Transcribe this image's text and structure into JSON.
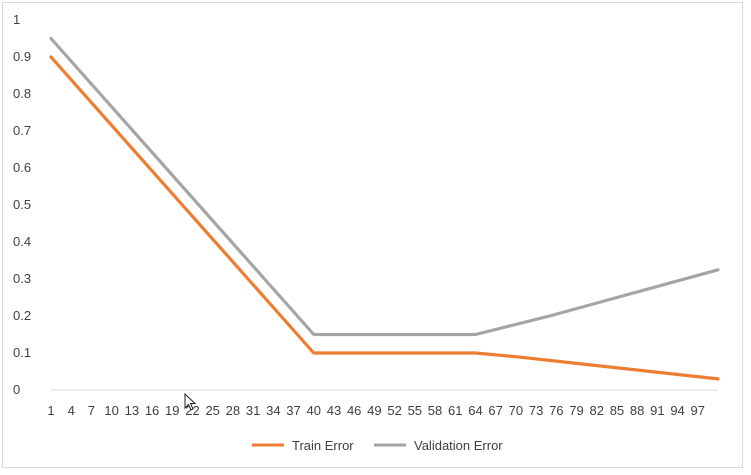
{
  "chart_data": {
    "type": "line",
    "title": "",
    "xlabel": "",
    "ylabel": "",
    "x_tick_labels": [
      "1",
      "4",
      "7",
      "10",
      "13",
      "16",
      "19",
      "22",
      "25",
      "28",
      "31",
      "34",
      "37",
      "40",
      "43",
      "46",
      "49",
      "52",
      "55",
      "58",
      "61",
      "64",
      "67",
      "70",
      "73",
      "76",
      "79",
      "82",
      "85",
      "88",
      "91",
      "94",
      "97"
    ],
    "x_range": [
      1,
      100
    ],
    "y_tick_labels": [
      "0",
      "0.1",
      "0.2",
      "0.3",
      "0.4",
      "0.5",
      "0.6",
      "0.7",
      "0.8",
      "0.9",
      "1"
    ],
    "ylim": [
      0,
      1
    ],
    "grid": false,
    "legend_position": "bottom",
    "series": [
      {
        "name": "Train Error",
        "color": "#ed7d31",
        "points": [
          [
            1,
            0.9
          ],
          [
            40,
            0.1
          ],
          [
            64,
            0.1
          ],
          [
            70,
            0.09
          ],
          [
            80,
            0.07
          ],
          [
            90,
            0.05
          ],
          [
            100,
            0.03
          ]
        ]
      },
      {
        "name": "Validation Error",
        "color": "#a5a5a5",
        "points": [
          [
            1,
            0.95
          ],
          [
            40,
            0.15
          ],
          [
            64,
            0.15
          ],
          [
            75,
            0.2
          ],
          [
            85,
            0.25
          ],
          [
            100,
            0.325
          ]
        ]
      }
    ]
  }
}
